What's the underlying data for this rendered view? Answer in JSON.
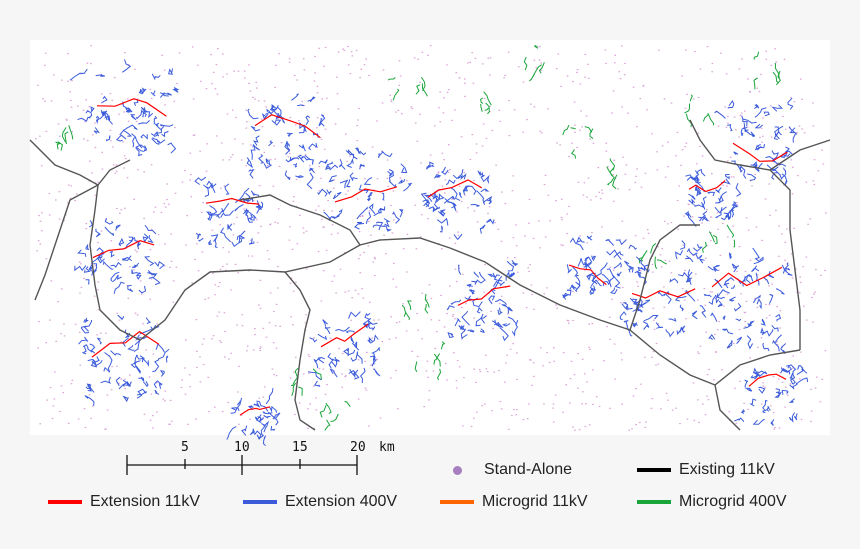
{
  "scale_bar": {
    "ticks": [
      "5",
      "10",
      "15",
      "20"
    ],
    "unit": "km"
  },
  "legend": [
    {
      "key": "extension-11kv",
      "label": "Extension 11kV",
      "color": "#ff0000",
      "kind": "line"
    },
    {
      "key": "extension-400v",
      "label": "Extension 400V",
      "color": "#3b5bdb",
      "kind": "line"
    },
    {
      "key": "stand-alone",
      "label": "Stand-Alone",
      "color": "#a77fc0",
      "kind": "dot"
    },
    {
      "key": "microgrid-11kv",
      "label": "Microgrid 11kV",
      "color": "#ff6600",
      "kind": "line"
    },
    {
      "key": "existing-11kv",
      "label": "Existing 11kV",
      "color": "#000000",
      "kind": "line"
    },
    {
      "key": "microgrid-400v",
      "label": "Microgrid 400V",
      "color": "#1aa53a",
      "kind": "line"
    }
  ],
  "colors": {
    "background": "#f6f6f6",
    "map_background": "#ffffff",
    "existing_line": "#555555",
    "stand_alone_dots": "#d9a3d6"
  }
}
